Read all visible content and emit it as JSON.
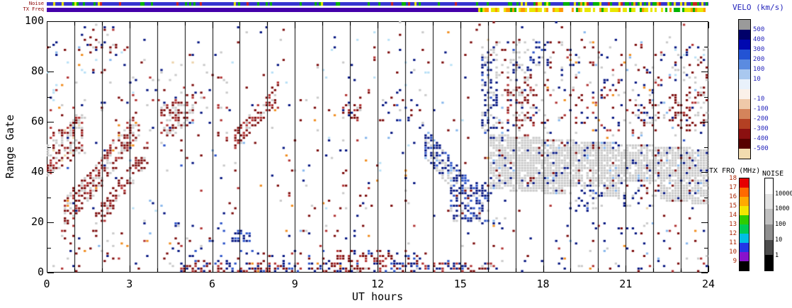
{
  "figure": {
    "strips": {
      "noise_label": "Noise",
      "txfreq_label": "TX Freq",
      "tx_solid_until_hour": 15.62,
      "strip_colors": {
        "blue": "#3535cf",
        "green": "#00b300",
        "yellow": "#e8e800",
        "orange": "#ff9900",
        "red": "#cc2222",
        "indigo": "#4400aa",
        "gap": "#ffffff"
      }
    }
  },
  "chart_data": {
    "type": "heatmap",
    "title": "",
    "xlabel": "UT hours",
    "ylabel": "Range Gate",
    "xlim": [
      0,
      24
    ],
    "ylim": [
      0,
      100
    ],
    "x_ticks": [
      0,
      3,
      6,
      9,
      12,
      15,
      18,
      21,
      24
    ],
    "y_ticks": [
      0,
      20,
      40,
      60,
      80,
      100
    ],
    "x_minor_step": 1,
    "y_minor_step": 10,
    "gap_lines_hours": [
      1,
      2,
      3,
      4,
      5,
      6,
      7,
      8,
      9,
      10,
      11,
      12,
      13,
      14,
      15,
      16,
      17,
      18,
      19,
      20,
      21,
      22,
      23
    ],
    "colorbars": {
      "velocity": {
        "title": "VELO (km/s)",
        "title_color": "#2323bb",
        "labels": [
          "500",
          "400",
          "300",
          "200",
          "100",
          "10",
          "-10",
          "-100",
          "-200",
          "-300",
          "-400",
          "-500"
        ],
        "label_boundaries": [
          1,
          2,
          3,
          4,
          5,
          6,
          8,
          9,
          10,
          11,
          12,
          13
        ],
        "blocks": [
          "#9a9a9a",
          "#000069",
          "#0008b0",
          "#2353d4",
          "#5b8be0",
          "#a9c8ef",
          "#e9f1fb",
          "#fbf1e9",
          "#efc9a9",
          "#d4845b",
          "#b34023",
          "#8b1010",
          "#570000",
          "#f2dcb0"
        ]
      },
      "tx_freq": {
        "title": "TX FRQ (MHz)",
        "label_color": "#aa2200",
        "labels": [
          "18",
          "17",
          "16",
          "15",
          "14",
          "13",
          "12",
          "11",
          "10",
          "9"
        ],
        "blocks": [
          "#e60000",
          "#ff6a00",
          "#ffaa00",
          "#f2e600",
          "#2fcc00",
          "#00cc55",
          "#00bfe6",
          "#2336e6",
          "#8812cc",
          "#000000"
        ]
      },
      "noise": {
        "title": "NOISE",
        "labels": [
          "10000",
          "1000",
          "100",
          "10",
          "1"
        ],
        "blocks": [
          "#ffffff",
          "#e3e3e3",
          "#c0c0c0",
          "#909090",
          "#4d4d4d",
          "#000000"
        ]
      }
    },
    "scatter": {
      "seed": 1337,
      "palette": {
        "darkred": "#7b0a0a",
        "red": "#b03030",
        "navy": "#00127f",
        "blue": "#2a52c8",
        "ltblue": "#86b6ec",
        "cyan": "#b8e0f6",
        "gray": "#c9c9c9",
        "orange": "#f08c1e",
        "tan": "#ecd2a8"
      },
      "background": {
        "d": 0.018,
        "c": {
          "darkred": 2.5,
          "navy": 2.5,
          "red": 1,
          "blue": 0.8,
          "gray": 1.5,
          "ltblue": 0.8,
          "cyan": 0.6,
          "orange": 0.5,
          "tan": 0.4
        }
      },
      "regions": [
        {
          "x": [
            0,
            4.5
          ],
          "y": [
            0,
            16
          ],
          "d": 0.05,
          "c": {
            "darkred": 2,
            "navy": 1.5,
            "gray": 1,
            "orange": 0.5,
            "ltblue": 0.5,
            "red": 1
          }
        },
        {
          "x": [
            4.5,
            6.5
          ],
          "y": [
            0,
            20
          ],
          "d": 0.08,
          "c": {
            "navy": 1.5,
            "darkred": 1.5,
            "blue": 1,
            "red": 1,
            "gray": 0.5
          }
        },
        {
          "x": [
            6.5,
            13.5
          ],
          "y": [
            4,
            9
          ],
          "d": 0.18,
          "c": {
            "navy": 2,
            "darkred": 2,
            "red": 1,
            "blue": 1
          }
        },
        {
          "x": [
            0,
            3.6
          ],
          "y": [
            60,
            90
          ],
          "d": 0.06,
          "c": {
            "darkred": 1.5,
            "navy": 1,
            "cyan": 1,
            "ltblue": 0.8,
            "orange": 0.6,
            "gray": 1,
            "red": 1
          }
        },
        {
          "x": [
            3.6,
            6.8
          ],
          "y": [
            52,
            80
          ],
          "d": 0.07,
          "c": {
            "gray": 2,
            "darkred": 1.5,
            "navy": 1,
            "red": 1,
            "ltblue": 0.5
          }
        },
        {
          "x": [
            8,
            14
          ],
          "y": [
            60,
            95
          ],
          "d": 0.035,
          "c": {
            "navy": 1.5,
            "darkred": 1.5,
            "gray": 1,
            "cyan": 0.8,
            "orange": 0.5,
            "red": 0.8
          }
        },
        {
          "x": [
            8.5,
            13.5
          ],
          "y": [
            14,
            55
          ],
          "d": 0.035,
          "c": {
            "navy": 1.5,
            "darkred": 1.5,
            "red": 1,
            "gray": 1,
            "ltblue": 0.6,
            "orange": 0.4,
            "cyan": 0.4
          }
        },
        {
          "x": [
            16.2,
            24
          ],
          "y": [
            54,
            92
          ],
          "d": 0.1,
          "c": {
            "navy": 1.5,
            "darkred": 1.5,
            "gray": 1.5,
            "red": 0.8,
            "ltblue": 0.5,
            "orange": 0.3
          }
        },
        {
          "x": [
            16.2,
            24
          ],
          "y": [
            0,
            20
          ],
          "d": 0.05,
          "c": {
            "navy": 1.5,
            "darkred": 1.5,
            "gray": 1,
            "red": 0.8,
            "orange": 0.4,
            "ltblue": 0.4
          }
        },
        {
          "x": [
            1.3,
            2.6
          ],
          "y": [
            88,
            100
          ],
          "d": 0.15,
          "c": {
            "darkred": 2.5,
            "red": 1,
            "navy": 1,
            "gray": 1
          }
        },
        {
          "x": [
            0.05,
            1.35
          ],
          "yA": 46,
          "yB": 56,
          "th": 16,
          "d": 0.5,
          "c": {
            "gray": 4,
            "darkred": 3,
            "red": 1.5,
            "navy": 0.3,
            "tan": 0.5
          }
        },
        {
          "x": [
            0.6,
            3.45
          ],
          "yA": 22,
          "yB": 60,
          "th": 13,
          "d": 0.55,
          "c": {
            "darkred": 4,
            "red": 2,
            "gray": 2.5,
            "orange": 0.3,
            "navy": 0.3
          }
        },
        {
          "x": [
            1.8,
            3.7
          ],
          "yA": 20,
          "yB": 48,
          "th": 9,
          "d": 0.4,
          "c": {
            "darkred": 4,
            "gray": 2,
            "red": 1.5
          }
        },
        {
          "x": [
            4.1,
            5.35
          ],
          "yA": 58,
          "yB": 68,
          "th": 15,
          "d": 0.5,
          "c": {
            "darkred": 3.5,
            "gray": 2.5,
            "red": 1.5,
            "navy": 0.3
          }
        },
        {
          "x": [
            6.8,
            8.4
          ],
          "yA": 52,
          "yB": 72,
          "th": 8,
          "d": 0.55,
          "c": {
            "darkred": 4,
            "red": 2,
            "gray": 1
          }
        },
        {
          "x": [
            6.7,
            7.4
          ],
          "y": [
            12,
            17
          ],
          "d": 0.5,
          "c": {
            "navy": 4,
            "blue": 2
          }
        },
        {
          "x": [
            10.7,
            11.4
          ],
          "y": [
            60,
            67
          ],
          "d": 0.4,
          "c": {
            "darkred": 3,
            "red": 1.5,
            "gray": 1,
            "navy": 0.5
          }
        },
        {
          "x": [
            4.8,
            16.2
          ],
          "y": [
            0,
            4
          ],
          "d": 0.45,
          "c": {
            "darkred": 3,
            "red": 1.5,
            "navy": 2.5,
            "blue": 1,
            "gray": 0.5,
            "orange": 0.3
          }
        },
        {
          "x": [
            10.5,
            12.6
          ],
          "y": [
            4,
            7
          ],
          "d": 0.5,
          "c": {
            "darkred": 5,
            "red": 2
          }
        },
        {
          "x": [
            12.2,
            13.8
          ],
          "y": [
            55,
            70
          ],
          "d": 0.12,
          "c": {
            "navy": 2,
            "gray": 1.5,
            "darkred": 1,
            "blue": 1
          }
        },
        {
          "x": [
            13.7,
            15.9
          ],
          "yA": 52,
          "yB": 24,
          "th": 12,
          "d": 0.6,
          "c": {
            "navy": 4,
            "blue": 2,
            "gray": 1.5,
            "ltblue": 0.5
          }
        },
        {
          "x": [
            14.6,
            16.1
          ],
          "y": [
            20,
            36
          ],
          "d": 0.5,
          "c": {
            "navy": 4,
            "blue": 1.5,
            "gray": 1,
            "darkred": 0.3
          }
        },
        {
          "x": [
            15.75,
            16.35
          ],
          "y": [
            55,
            90
          ],
          "d": 0.45,
          "c": {
            "navy": 3,
            "gray": 2.5,
            "blue": 1,
            "ltblue": 0.5
          }
        },
        {
          "x": [
            16.1,
            24
          ],
          "yA": 44,
          "yB": 38,
          "th": 22,
          "d": 0.85,
          "c": {
            "gray": 10,
            "navy": 0.8,
            "darkred": 0.5,
            "ltblue": 0.3
          }
        },
        {
          "x": [
            16.7,
            17.7
          ],
          "y": [
            58,
            74
          ],
          "d": 0.45,
          "c": {
            "darkred": 3,
            "red": 1.5,
            "gray": 2,
            "navy": 0.5
          }
        },
        {
          "x": [
            16.1,
            17.6
          ],
          "y": [
            76,
            92
          ],
          "d": 0.3,
          "c": {
            "gray": 3,
            "navy": 1.5,
            "darkred": 1,
            "blue": 0.5
          }
        },
        {
          "x": [
            17.2,
            18.2
          ],
          "y": [
            80,
            93
          ],
          "d": 0.22,
          "c": {
            "navy": 2,
            "gray": 1,
            "blue": 0.5
          }
        },
        {
          "x": [
            18.8,
            20.2
          ],
          "y": [
            24,
            34
          ],
          "d": 0.25,
          "c": {
            "navy": 2.5,
            "blue": 1,
            "gray": 1
          }
        },
        {
          "x": [
            20.8,
            22.3
          ],
          "y": [
            26,
            36
          ],
          "d": 0.2,
          "c": {
            "navy": 2,
            "gray": 1.5,
            "darkred": 0.5
          }
        },
        {
          "x": [
            21.4,
            22.2
          ],
          "y": [
            58,
            68
          ],
          "d": 0.3,
          "c": {
            "darkred": 2.5,
            "gray": 1.5,
            "navy": 1
          }
        },
        {
          "x": [
            22.6,
            24
          ],
          "y": [
            58,
            72
          ],
          "d": 0.35,
          "c": {
            "darkred": 3,
            "red": 1.5,
            "gray": 1.5,
            "navy": 0.5
          }
        },
        {
          "x": [
            22.8,
            24
          ],
          "y": [
            76,
            90
          ],
          "d": 0.2,
          "c": {
            "navy": 1.5,
            "darkred": 1.5,
            "gray": 1,
            "cyan": 0.5
          }
        }
      ]
    }
  }
}
